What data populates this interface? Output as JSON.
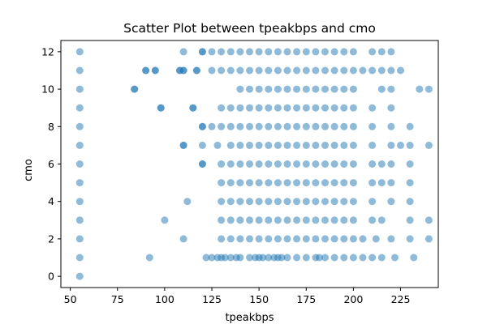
{
  "chart_data": {
    "type": "scatter",
    "title": "Scatter Plot between tpeakbps and cmo",
    "xlabel": "tpeakbps",
    "ylabel": "cmo",
    "xlim": [
      45,
      245
    ],
    "ylim": [
      -0.6,
      12.6
    ],
    "xticks": [
      50,
      75,
      100,
      125,
      150,
      175,
      200,
      225
    ],
    "yticks": [
      0,
      2,
      4,
      6,
      8,
      10,
      12
    ],
    "grid": false,
    "legend": "none",
    "marker_color": "#1f77b4",
    "marker_alpha": 0.5,
    "points": [
      [
        55,
        0
      ],
      [
        55,
        1
      ],
      [
        55,
        2
      ],
      [
        55,
        3
      ],
      [
        55,
        4
      ],
      [
        55,
        5
      ],
      [
        55,
        6
      ],
      [
        55,
        7
      ],
      [
        55,
        8
      ],
      [
        55,
        9
      ],
      [
        55,
        10
      ],
      [
        55,
        11
      ],
      [
        55,
        12
      ],
      [
        92,
        1
      ],
      [
        100,
        3
      ],
      [
        110,
        2
      ],
      [
        112,
        4
      ],
      [
        115,
        9
      ],
      [
        110,
        7
      ],
      [
        120,
        6
      ],
      [
        120,
        8
      ],
      [
        120,
        12
      ],
      [
        84,
        10
      ],
      [
        90,
        11
      ],
      [
        95,
        11
      ],
      [
        98,
        9
      ],
      [
        108,
        11
      ],
      [
        110,
        11
      ],
      [
        117,
        11
      ],
      [
        125,
        1
      ],
      [
        128,
        1
      ],
      [
        122,
        1
      ],
      [
        130,
        1
      ],
      [
        132,
        1
      ],
      [
        135,
        1
      ],
      [
        138,
        1
      ],
      [
        140,
        1
      ],
      [
        145,
        1
      ],
      [
        148,
        1
      ],
      [
        150,
        1
      ],
      [
        152,
        1
      ],
      [
        155,
        1
      ],
      [
        158,
        1
      ],
      [
        160,
        1
      ],
      [
        162,
        1
      ],
      [
        165,
        1
      ],
      [
        170,
        1
      ],
      [
        175,
        1
      ],
      [
        180,
        1
      ],
      [
        182,
        1
      ],
      [
        185,
        1
      ],
      [
        190,
        1
      ],
      [
        195,
        1
      ],
      [
        200,
        1
      ],
      [
        205,
        1
      ],
      [
        210,
        1
      ],
      [
        215,
        1
      ],
      [
        222,
        1
      ],
      [
        232,
        1
      ],
      [
        130,
        2
      ],
      [
        135,
        2
      ],
      [
        140,
        2
      ],
      [
        145,
        2
      ],
      [
        150,
        2
      ],
      [
        155,
        2
      ],
      [
        160,
        2
      ],
      [
        165,
        2
      ],
      [
        170,
        2
      ],
      [
        175,
        2
      ],
      [
        180,
        2
      ],
      [
        185,
        2
      ],
      [
        190,
        2
      ],
      [
        195,
        2
      ],
      [
        200,
        2
      ],
      [
        205,
        2
      ],
      [
        212,
        2
      ],
      [
        220,
        2
      ],
      [
        230,
        2
      ],
      [
        240,
        2
      ],
      [
        130,
        3
      ],
      [
        135,
        3
      ],
      [
        140,
        3
      ],
      [
        145,
        3
      ],
      [
        150,
        3
      ],
      [
        155,
        3
      ],
      [
        160,
        3
      ],
      [
        165,
        3
      ],
      [
        170,
        3
      ],
      [
        175,
        3
      ],
      [
        180,
        3
      ],
      [
        185,
        3
      ],
      [
        190,
        3
      ],
      [
        195,
        3
      ],
      [
        200,
        3
      ],
      [
        210,
        3
      ],
      [
        215,
        3
      ],
      [
        230,
        3
      ],
      [
        240,
        3
      ],
      [
        130,
        4
      ],
      [
        135,
        4
      ],
      [
        140,
        4
      ],
      [
        145,
        4
      ],
      [
        150,
        4
      ],
      [
        155,
        4
      ],
      [
        160,
        4
      ],
      [
        165,
        4
      ],
      [
        170,
        4
      ],
      [
        175,
        4
      ],
      [
        180,
        4
      ],
      [
        185,
        4
      ],
      [
        190,
        4
      ],
      [
        195,
        4
      ],
      [
        200,
        4
      ],
      [
        210,
        4
      ],
      [
        220,
        4
      ],
      [
        230,
        4
      ],
      [
        130,
        5
      ],
      [
        135,
        5
      ],
      [
        140,
        5
      ],
      [
        145,
        5
      ],
      [
        150,
        5
      ],
      [
        155,
        5
      ],
      [
        160,
        5
      ],
      [
        165,
        5
      ],
      [
        170,
        5
      ],
      [
        175,
        5
      ],
      [
        180,
        5
      ],
      [
        185,
        5
      ],
      [
        190,
        5
      ],
      [
        195,
        5
      ],
      [
        200,
        5
      ],
      [
        210,
        5
      ],
      [
        215,
        5
      ],
      [
        220,
        5
      ],
      [
        230,
        5
      ],
      [
        120,
        6
      ],
      [
        130,
        6
      ],
      [
        135,
        6
      ],
      [
        140,
        6
      ],
      [
        145,
        6
      ],
      [
        150,
        6
      ],
      [
        155,
        6
      ],
      [
        160,
        6
      ],
      [
        165,
        6
      ],
      [
        170,
        6
      ],
      [
        175,
        6
      ],
      [
        180,
        6
      ],
      [
        185,
        6
      ],
      [
        190,
        6
      ],
      [
        195,
        6
      ],
      [
        200,
        6
      ],
      [
        210,
        6
      ],
      [
        215,
        6
      ],
      [
        220,
        6
      ],
      [
        230,
        6
      ],
      [
        110,
        7
      ],
      [
        120,
        7
      ],
      [
        128,
        7
      ],
      [
        135,
        7
      ],
      [
        140,
        7
      ],
      [
        145,
        7
      ],
      [
        150,
        7
      ],
      [
        155,
        7
      ],
      [
        160,
        7
      ],
      [
        165,
        7
      ],
      [
        170,
        7
      ],
      [
        175,
        7
      ],
      [
        180,
        7
      ],
      [
        185,
        7
      ],
      [
        190,
        7
      ],
      [
        195,
        7
      ],
      [
        200,
        7
      ],
      [
        210,
        7
      ],
      [
        220,
        7
      ],
      [
        225,
        7
      ],
      [
        230,
        7
      ],
      [
        240,
        7
      ],
      [
        120,
        8
      ],
      [
        125,
        8
      ],
      [
        130,
        8
      ],
      [
        135,
        8
      ],
      [
        140,
        8
      ],
      [
        145,
        8
      ],
      [
        150,
        8
      ],
      [
        155,
        8
      ],
      [
        160,
        8
      ],
      [
        165,
        8
      ],
      [
        170,
        8
      ],
      [
        175,
        8
      ],
      [
        180,
        8
      ],
      [
        185,
        8
      ],
      [
        190,
        8
      ],
      [
        195,
        8
      ],
      [
        200,
        8
      ],
      [
        210,
        8
      ],
      [
        220,
        8
      ],
      [
        230,
        8
      ],
      [
        98,
        9
      ],
      [
        115,
        9
      ],
      [
        130,
        9
      ],
      [
        135,
        9
      ],
      [
        140,
        9
      ],
      [
        145,
        9
      ],
      [
        150,
        9
      ],
      [
        155,
        9
      ],
      [
        160,
        9
      ],
      [
        165,
        9
      ],
      [
        170,
        9
      ],
      [
        175,
        9
      ],
      [
        180,
        9
      ],
      [
        185,
        9
      ],
      [
        190,
        9
      ],
      [
        195,
        9
      ],
      [
        200,
        9
      ],
      [
        210,
        9
      ],
      [
        220,
        9
      ],
      [
        84,
        10
      ],
      [
        140,
        10
      ],
      [
        145,
        10
      ],
      [
        150,
        10
      ],
      [
        155,
        10
      ],
      [
        160,
        10
      ],
      [
        165,
        10
      ],
      [
        170,
        10
      ],
      [
        175,
        10
      ],
      [
        180,
        10
      ],
      [
        185,
        10
      ],
      [
        190,
        10
      ],
      [
        195,
        10
      ],
      [
        200,
        10
      ],
      [
        215,
        10
      ],
      [
        220,
        10
      ],
      [
        235,
        10
      ],
      [
        240,
        10
      ],
      [
        90,
        11
      ],
      [
        95,
        11
      ],
      [
        108,
        11
      ],
      [
        110,
        11
      ],
      [
        117,
        11
      ],
      [
        125,
        11
      ],
      [
        130,
        11
      ],
      [
        135,
        11
      ],
      [
        140,
        11
      ],
      [
        145,
        11
      ],
      [
        150,
        11
      ],
      [
        155,
        11
      ],
      [
        160,
        11
      ],
      [
        165,
        11
      ],
      [
        170,
        11
      ],
      [
        175,
        11
      ],
      [
        180,
        11
      ],
      [
        185,
        11
      ],
      [
        190,
        11
      ],
      [
        195,
        11
      ],
      [
        200,
        11
      ],
      [
        205,
        11
      ],
      [
        210,
        11
      ],
      [
        215,
        11
      ],
      [
        220,
        11
      ],
      [
        225,
        11
      ],
      [
        110,
        12
      ],
      [
        120,
        12
      ],
      [
        125,
        12
      ],
      [
        130,
        12
      ],
      [
        135,
        12
      ],
      [
        140,
        12
      ],
      [
        145,
        12
      ],
      [
        150,
        12
      ],
      [
        155,
        12
      ],
      [
        160,
        12
      ],
      [
        165,
        12
      ],
      [
        170,
        12
      ],
      [
        175,
        12
      ],
      [
        180,
        12
      ],
      [
        185,
        12
      ],
      [
        190,
        12
      ],
      [
        195,
        12
      ],
      [
        200,
        12
      ],
      [
        210,
        12
      ],
      [
        215,
        12
      ],
      [
        220,
        12
      ]
    ]
  }
}
